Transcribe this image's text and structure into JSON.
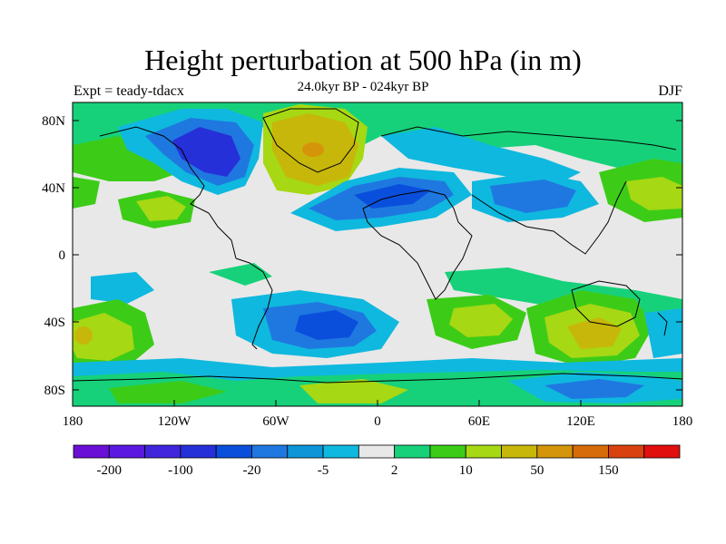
{
  "title": "Height perturbation at 500 hPa (in m)",
  "subtitle": "24.0kyr BP - 024kyr BP",
  "left_label": "Expt = teady-tdacx",
  "right_label": "DJF",
  "lat_ticks": [
    "80N",
    "40N",
    "0",
    "40S",
    "80S"
  ],
  "lon_ticks": [
    "180",
    "120W",
    "60W",
    "0",
    "60E",
    "120E",
    "180"
  ],
  "colorbar": {
    "colors": [
      "#6a0fd6",
      "#5a18e0",
      "#4025dd",
      "#2630d8",
      "#0a4fdc",
      "#1f78e0",
      "#0d95d8",
      "#0fb8de",
      "#e8e8e8",
      "#17d17a",
      "#3ccc18",
      "#a6d813",
      "#c7b70a",
      "#d4950b",
      "#d66b0a",
      "#d9420f",
      "#e20f0f"
    ],
    "labels": [
      "-200",
      "-100",
      "-20",
      "-5",
      "2",
      "10",
      "50",
      "150"
    ]
  },
  "colors": {
    "background_field": "#e8e8e8",
    "coastline": "#000000"
  }
}
